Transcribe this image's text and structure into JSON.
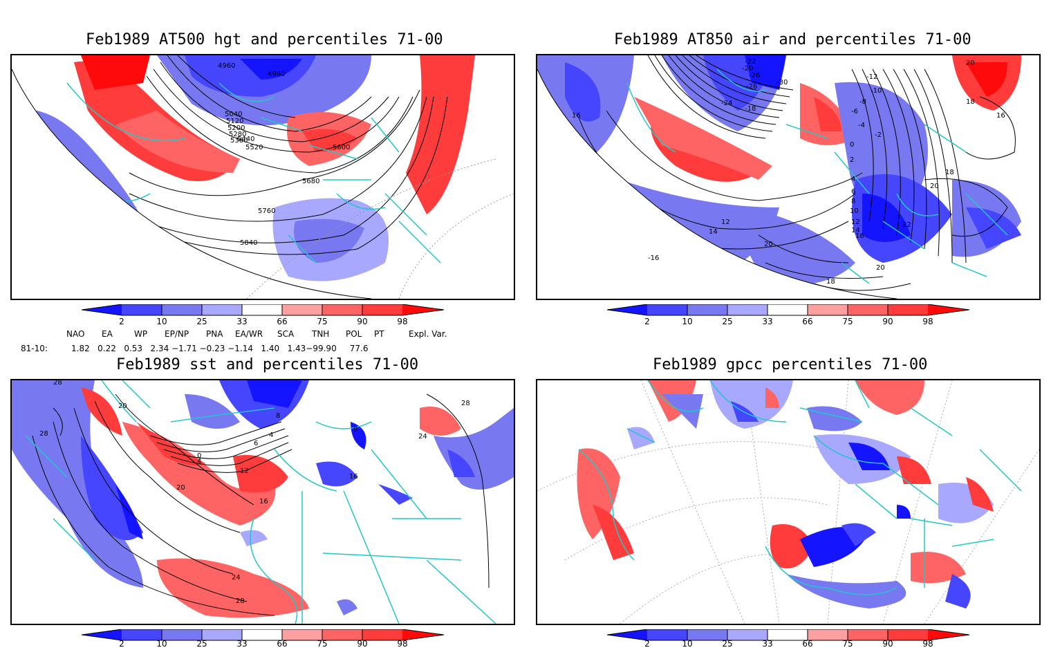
{
  "panels": [
    {
      "title": "Feb1989 AT500 hgt and percentiles 71-00",
      "contour_labels": [
        "4960",
        "4960",
        "5040",
        "5120",
        "5200",
        "5280",
        "5360",
        "5440",
        "5520",
        "5600",
        "5680",
        "5760",
        "5840"
      ]
    },
    {
      "title": "Feb1989 AT850 air and percentiles 71-00",
      "contour_labels": [
        "-22",
        "-20",
        "-26",
        "-26",
        "-30",
        "-24",
        "-18",
        "-12",
        "-10",
        "-8",
        "-6",
        "-4",
        "-2",
        "0",
        "2",
        "4",
        "6",
        "8",
        "10",
        "12",
        "14",
        "16",
        "16",
        "18",
        "20",
        "22",
        "20",
        "20",
        "18",
        "14",
        "12",
        "-16",
        "20",
        "18",
        "16"
      ]
    },
    {
      "title": "Feb1989 sst and percentiles 71-00",
      "contour_labels": [
        "28",
        "20",
        "28",
        "0",
        "4",
        "4",
        "6",
        "8",
        "12",
        "16",
        "20",
        "24",
        "28",
        "24",
        "28",
        "16",
        "0"
      ]
    },
    {
      "title": "Feb1989 gpcc percentiles 71-00",
      "contour_labels": []
    }
  ],
  "colorbar": {
    "labels": [
      "2",
      "10",
      "25",
      "33",
      "66",
      "75",
      "90",
      "98"
    ],
    "colors": [
      "#1414ff",
      "#4646ff",
      "#7878f0",
      "#a8a8ff",
      "#ffa0a0",
      "#ff6464",
      "#ff3c3c",
      "#ff0a0a"
    ]
  },
  "indices": {
    "names": [
      "NAO",
      "EA",
      "WP",
      "EP/NP",
      "PNA",
      "EA/WR",
      "SCA",
      "TNH",
      "POL",
      "PT",
      "Expl. Var."
    ],
    "period": "81-10:",
    "values_line": "1.82   0.22   0.53   2.34 −1.71 −0.23 −1.14   1.40   1.43−99.90     77.6"
  }
}
